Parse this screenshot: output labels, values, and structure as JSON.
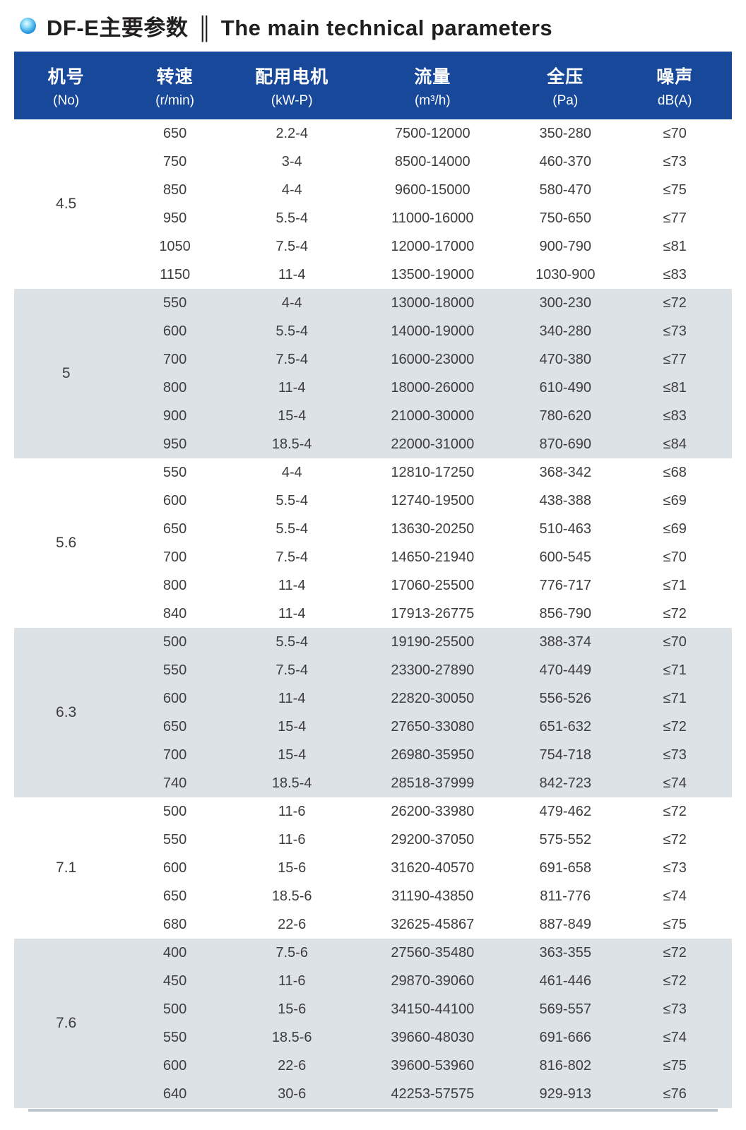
{
  "title": {
    "zh": "DF-E主要参数",
    "divider": "║",
    "en": "The main technical parameters"
  },
  "colors": {
    "header_bg": "#17489a",
    "band_bg": "#dde2e6",
    "bullet_blue": "#1a7fd4",
    "body_text": "#3d3d3f"
  },
  "table": {
    "headers": [
      {
        "zh": "机号",
        "sub": "(No)"
      },
      {
        "zh": "转速",
        "sub": "(r/min)"
      },
      {
        "zh": "配用电机",
        "sub": "(kW-P)"
      },
      {
        "zh": "流量",
        "sub": "(m³/h)"
      },
      {
        "zh": "全压",
        "sub": "(Pa)"
      },
      {
        "zh": "噪声",
        "sub": "dB(A)"
      }
    ],
    "groups": [
      {
        "no": "4.5",
        "rows": [
          {
            "speed": "650",
            "motor": "2.2-4",
            "flow": "7500-12000",
            "pressure": "350-280",
            "noise": "≤70"
          },
          {
            "speed": "750",
            "motor": "3-4",
            "flow": "8500-14000",
            "pressure": "460-370",
            "noise": "≤73"
          },
          {
            "speed": "850",
            "motor": "4-4",
            "flow": "9600-15000",
            "pressure": "580-470",
            "noise": "≤75"
          },
          {
            "speed": "950",
            "motor": "5.5-4",
            "flow": "11000-16000",
            "pressure": "750-650",
            "noise": "≤77"
          },
          {
            "speed": "1050",
            "motor": "7.5-4",
            "flow": "12000-17000",
            "pressure": "900-790",
            "noise": "≤81"
          },
          {
            "speed": "1150",
            "motor": "11-4",
            "flow": "13500-19000",
            "pressure": "1030-900",
            "noise": "≤83"
          }
        ]
      },
      {
        "no": "5",
        "rows": [
          {
            "speed": "550",
            "motor": "4-4",
            "flow": "13000-18000",
            "pressure": "300-230",
            "noise": "≤72"
          },
          {
            "speed": "600",
            "motor": "5.5-4",
            "flow": "14000-19000",
            "pressure": "340-280",
            "noise": "≤73"
          },
          {
            "speed": "700",
            "motor": "7.5-4",
            "flow": "16000-23000",
            "pressure": "470-380",
            "noise": "≤77"
          },
          {
            "speed": "800",
            "motor": "11-4",
            "flow": "18000-26000",
            "pressure": "610-490",
            "noise": "≤81"
          },
          {
            "speed": "900",
            "motor": "15-4",
            "flow": "21000-30000",
            "pressure": "780-620",
            "noise": "≤83"
          },
          {
            "speed": "950",
            "motor": "18.5-4",
            "flow": "22000-31000",
            "pressure": "870-690",
            "noise": "≤84"
          }
        ]
      },
      {
        "no": "5.6",
        "rows": [
          {
            "speed": "550",
            "motor": "4-4",
            "flow": "12810-17250",
            "pressure": "368-342",
            "noise": "≤68"
          },
          {
            "speed": "600",
            "motor": "5.5-4",
            "flow": "12740-19500",
            "pressure": "438-388",
            "noise": "≤69"
          },
          {
            "speed": "650",
            "motor": "5.5-4",
            "flow": "13630-20250",
            "pressure": "510-463",
            "noise": "≤69"
          },
          {
            "speed": "700",
            "motor": "7.5-4",
            "flow": "14650-21940",
            "pressure": "600-545",
            "noise": "≤70"
          },
          {
            "speed": "800",
            "motor": "11-4",
            "flow": "17060-25500",
            "pressure": "776-717",
            "noise": "≤71"
          },
          {
            "speed": "840",
            "motor": "11-4",
            "flow": "17913-26775",
            "pressure": "856-790",
            "noise": "≤72"
          }
        ]
      },
      {
        "no": "6.3",
        "rows": [
          {
            "speed": "500",
            "motor": "5.5-4",
            "flow": "19190-25500",
            "pressure": "388-374",
            "noise": "≤70"
          },
          {
            "speed": "550",
            "motor": "7.5-4",
            "flow": "23300-27890",
            "pressure": "470-449",
            "noise": "≤71"
          },
          {
            "speed": "600",
            "motor": "11-4",
            "flow": "22820-30050",
            "pressure": "556-526",
            "noise": "≤71"
          },
          {
            "speed": "650",
            "motor": "15-4",
            "flow": "27650-33080",
            "pressure": "651-632",
            "noise": "≤72"
          },
          {
            "speed": "700",
            "motor": "15-4",
            "flow": "26980-35950",
            "pressure": "754-718",
            "noise": "≤73"
          },
          {
            "speed": "740",
            "motor": "18.5-4",
            "flow": "28518-37999",
            "pressure": "842-723",
            "noise": "≤74"
          }
        ]
      },
      {
        "no": "7.1",
        "rows": [
          {
            "speed": "500",
            "motor": "11-6",
            "flow": "26200-33980",
            "pressure": "479-462",
            "noise": "≤72"
          },
          {
            "speed": "550",
            "motor": "11-6",
            "flow": "29200-37050",
            "pressure": "575-552",
            "noise": "≤72"
          },
          {
            "speed": "600",
            "motor": "15-6",
            "flow": "31620-40570",
            "pressure": "691-658",
            "noise": "≤73"
          },
          {
            "speed": "650",
            "motor": "18.5-6",
            "flow": "31190-43850",
            "pressure": "811-776",
            "noise": "≤74"
          },
          {
            "speed": "680",
            "motor": "22-6",
            "flow": "32625-45867",
            "pressure": "887-849",
            "noise": "≤75"
          }
        ]
      },
      {
        "no": "7.6",
        "rows": [
          {
            "speed": "400",
            "motor": "7.5-6",
            "flow": "27560-35480",
            "pressure": "363-355",
            "noise": "≤72"
          },
          {
            "speed": "450",
            "motor": "11-6",
            "flow": "29870-39060",
            "pressure": "461-446",
            "noise": "≤72"
          },
          {
            "speed": "500",
            "motor": "15-6",
            "flow": "34150-44100",
            "pressure": "569-557",
            "noise": "≤73"
          },
          {
            "speed": "550",
            "motor": "18.5-6",
            "flow": "39660-48030",
            "pressure": "691-666",
            "noise": "≤74"
          },
          {
            "speed": "600",
            "motor": "22-6",
            "flow": "39600-53960",
            "pressure": "816-802",
            "noise": "≤75"
          },
          {
            "speed": "640",
            "motor": "30-6",
            "flow": "42253-57575",
            "pressure": "929-913",
            "noise": "≤76"
          }
        ]
      }
    ]
  }
}
